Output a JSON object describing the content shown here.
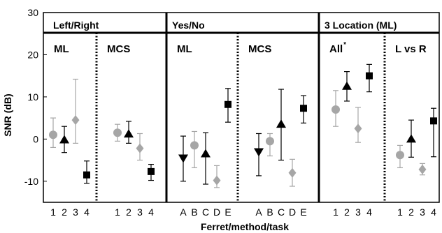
{
  "chart_data": {
    "type": "scatter",
    "title": "",
    "xlabel": "Ferret/method/task",
    "ylabel": "SNR (dB)",
    "ylim": [
      -15,
      30
    ],
    "yticks": [
      -10,
      0,
      10,
      20,
      30
    ],
    "grid": false,
    "colors": {
      "black": "#000000",
      "gray": "#a6a6a6"
    },
    "groups": [
      "Left/Right",
      "Yes/No",
      "3 Location (ML)"
    ],
    "panels": [
      {
        "group": "Left/Right",
        "label": "ML",
        "superscript": "",
        "categories": [
          "1",
          "2",
          "3",
          "4"
        ],
        "points": [
          {
            "cat": "1",
            "marker": "circle",
            "color": "gray",
            "y": 1.0,
            "lo": -2.0,
            "hi": 5.0
          },
          {
            "cat": "2",
            "marker": "triangle-up",
            "color": "black",
            "y": -0.2,
            "lo": -3.2,
            "hi": 3.0
          },
          {
            "cat": "3",
            "marker": "diamond",
            "color": "gray",
            "y": 4.5,
            "lo": -1.0,
            "hi": 14.2
          },
          {
            "cat": "4",
            "marker": "square",
            "color": "black",
            "y": -8.5,
            "lo": -10.5,
            "hi": -5.2
          }
        ]
      },
      {
        "group": "Left/Right",
        "label": "MCS",
        "superscript": "",
        "categories": [
          "1",
          "2",
          "3",
          "4"
        ],
        "points": [
          {
            "cat": "1",
            "marker": "circle",
            "color": "gray",
            "y": 1.5,
            "lo": -0.5,
            "hi": 3.5
          },
          {
            "cat": "2",
            "marker": "triangle-up",
            "color": "black",
            "y": 1.2,
            "lo": -1.0,
            "hi": 4.2
          },
          {
            "cat": "3",
            "marker": "diamond",
            "color": "gray",
            "y": -2.2,
            "lo": -5.0,
            "hi": 1.3
          },
          {
            "cat": "4",
            "marker": "square",
            "color": "black",
            "y": -7.7,
            "lo": -9.8,
            "hi": -6.0
          }
        ]
      },
      {
        "group": "Yes/No",
        "label": "ML",
        "superscript": "",
        "categories": [
          "A",
          "B",
          "C",
          "D",
          "E"
        ],
        "points": [
          {
            "cat": "A",
            "marker": "triangle-down",
            "color": "black",
            "y": -4.5,
            "lo": -10.0,
            "hi": 0.7
          },
          {
            "cat": "B",
            "marker": "circle",
            "color": "gray",
            "y": -1.5,
            "lo": -6.8,
            "hi": 1.8
          },
          {
            "cat": "C",
            "marker": "triangle-up",
            "color": "black",
            "y": -3.5,
            "lo": -10.7,
            "hi": 1.5
          },
          {
            "cat": "D",
            "marker": "diamond",
            "color": "gray",
            "y": -9.8,
            "lo": -11.5,
            "hi": -6.3
          },
          {
            "cat": "E",
            "marker": "square",
            "color": "black",
            "y": 8.2,
            "lo": 4.0,
            "hi": 12.0
          }
        ]
      },
      {
        "group": "Yes/No",
        "label": "MCS",
        "superscript": "",
        "categories": [
          "A",
          "B",
          "C",
          "D",
          "E"
        ],
        "points": [
          {
            "cat": "A",
            "marker": "triangle-down",
            "color": "black",
            "y": -3.0,
            "lo": -8.7,
            "hi": 1.3
          },
          {
            "cat": "B",
            "marker": "circle",
            "color": "gray",
            "y": -0.5,
            "lo": -4.0,
            "hi": 1.3
          },
          {
            "cat": "C",
            "marker": "triangle-up",
            "color": "black",
            "y": 3.5,
            "lo": -5.0,
            "hi": 11.8
          },
          {
            "cat": "D",
            "marker": "diamond",
            "color": "gray",
            "y": -8.0,
            "lo": -11.2,
            "hi": -4.8
          },
          {
            "cat": "E",
            "marker": "square",
            "color": "black",
            "y": 7.3,
            "lo": 3.8,
            "hi": 10.3
          }
        ]
      },
      {
        "group": "3 Location (ML)",
        "label": "All",
        "superscript": "*",
        "categories": [
          "1",
          "2",
          "3",
          "4"
        ],
        "points": [
          {
            "cat": "1",
            "marker": "circle",
            "color": "gray",
            "y": 7.0,
            "lo": 3.0,
            "hi": 11.5
          },
          {
            "cat": "2",
            "marker": "triangle-up",
            "color": "black",
            "y": 12.5,
            "lo": 9.0,
            "hi": 16.0
          },
          {
            "cat": "3",
            "marker": "diamond",
            "color": "gray",
            "y": 2.5,
            "lo": -0.8,
            "hi": 7.5
          },
          {
            "cat": "4",
            "marker": "square",
            "color": "black",
            "y": 15.0,
            "lo": 11.2,
            "hi": 17.7
          }
        ]
      },
      {
        "group": "3 Location (ML)",
        "label": "L vs R",
        "superscript": "",
        "categories": [
          "1",
          "2",
          "3",
          "4"
        ],
        "points": [
          {
            "cat": "1",
            "marker": "circle",
            "color": "gray",
            "y": -3.8,
            "lo": -6.8,
            "hi": -1.5
          },
          {
            "cat": "2",
            "marker": "triangle-up",
            "color": "black",
            "y": 0.0,
            "lo": -4.3,
            "hi": 4.5
          },
          {
            "cat": "3",
            "marker": "diamond",
            "color": "gray",
            "y": -7.2,
            "lo": -8.5,
            "hi": -5.8
          },
          {
            "cat": "4",
            "marker": "square",
            "color": "black",
            "y": 4.3,
            "lo": -4.2,
            "hi": 7.3
          }
        ]
      }
    ]
  }
}
